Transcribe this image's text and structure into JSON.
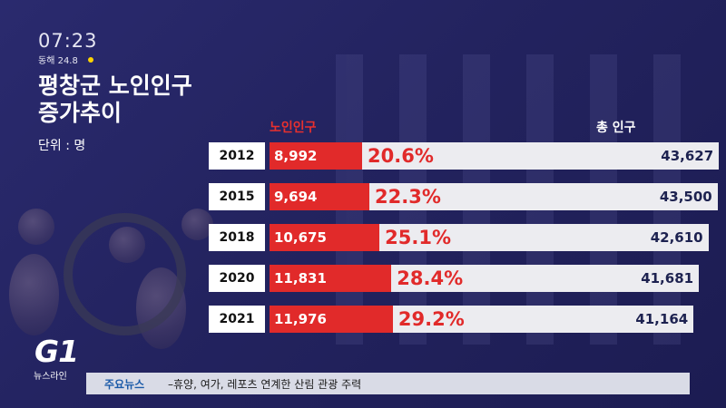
{
  "clock": {
    "time": "07:23",
    "weather": "동해 24.8"
  },
  "title": {
    "line1": "평창군 노인인구",
    "line2": "증가추이",
    "unit": "단위 : 명"
  },
  "chart_data": {
    "type": "bar",
    "columns": {
      "elder": "노인인구",
      "total": "총 인구"
    },
    "categories": [
      "2012",
      "2015",
      "2018",
      "2020",
      "2021"
    ],
    "series": [
      {
        "name": "노인인구",
        "values": [
          8992,
          9694,
          10675,
          11831,
          11976
        ],
        "labels": [
          "8,992",
          "9,694",
          "10,675",
          "11,831",
          "11,976"
        ]
      },
      {
        "name": "총 인구",
        "values": [
          43627,
          43500,
          42610,
          41681,
          41164
        ],
        "labels": [
          "43,627",
          "43,500",
          "42,610",
          "41,681",
          "41,164"
        ]
      }
    ],
    "percentages": [
      "20.6%",
      "22.3%",
      "25.1%",
      "28.4%",
      "29.2%"
    ],
    "colors": {
      "elder": "#e12a2a",
      "total": "#ececf0",
      "year_box": "#ffffff"
    }
  },
  "logo": {
    "mark": "G1",
    "sub": "뉴스라인"
  },
  "ticker": {
    "label": "주요뉴스",
    "text": "–휴양, 여가, 레포츠 연계한 산림 관광 주력"
  }
}
